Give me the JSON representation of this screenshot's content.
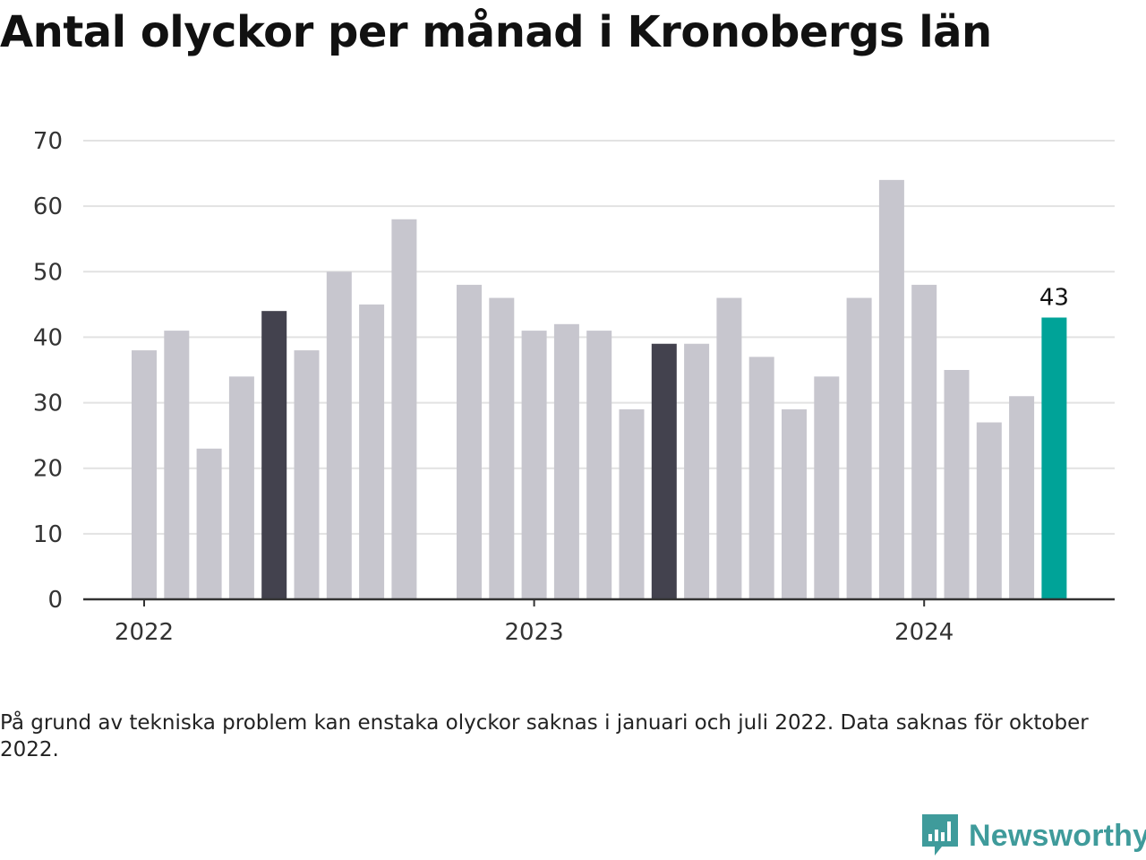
{
  "title": "Antal olyckor per månad i Kronobergs län",
  "note": "På grund av tekniska problem kan enstaka olyckor saknas i januari och juli 2022. Data saknas för oktober 2022.",
  "brand": {
    "name": "Newsworthy",
    "icon": "chart-bubble-icon"
  },
  "colors": {
    "default": "#c7c6ce",
    "highlight": "#43424e",
    "current": "#00a398",
    "grid": "#e2e2e2",
    "axis": "#333333",
    "brand": "#3f9b9b"
  },
  "chart_data": {
    "type": "bar",
    "title": "Antal olyckor per månad i Kronobergs län",
    "xlabel": "",
    "ylabel": "",
    "ylim": [
      0,
      70
    ],
    "yticks": [
      0,
      10,
      20,
      30,
      40,
      50,
      60,
      70
    ],
    "grid": true,
    "x_tick_labels": [
      {
        "label": "2022",
        "at": "2022-01"
      },
      {
        "label": "2023",
        "at": "2023-01"
      },
      {
        "label": "2024",
        "at": "2024-01"
      }
    ],
    "categories": [
      "2022-01",
      "2022-02",
      "2022-03",
      "2022-04",
      "2022-05",
      "2022-06",
      "2022-07",
      "2022-08",
      "2022-09",
      "2022-10",
      "2022-11",
      "2022-12",
      "2023-01",
      "2023-02",
      "2023-03",
      "2023-04",
      "2023-05",
      "2023-06",
      "2023-07",
      "2023-08",
      "2023-09",
      "2023-10",
      "2023-11",
      "2023-12",
      "2024-01",
      "2024-02",
      "2024-03",
      "2024-04",
      "2024-05"
    ],
    "values": [
      38,
      41,
      23,
      34,
      44,
      38,
      50,
      45,
      58,
      null,
      48,
      46,
      41,
      42,
      41,
      29,
      39,
      39,
      46,
      37,
      29,
      34,
      46,
      64,
      48,
      35,
      27,
      31,
      43
    ],
    "highlight": [
      "2022-05",
      "2023-05"
    ],
    "current": "2024-05",
    "data_labels": [
      {
        "category": "2024-05",
        "text": "43"
      }
    ]
  }
}
